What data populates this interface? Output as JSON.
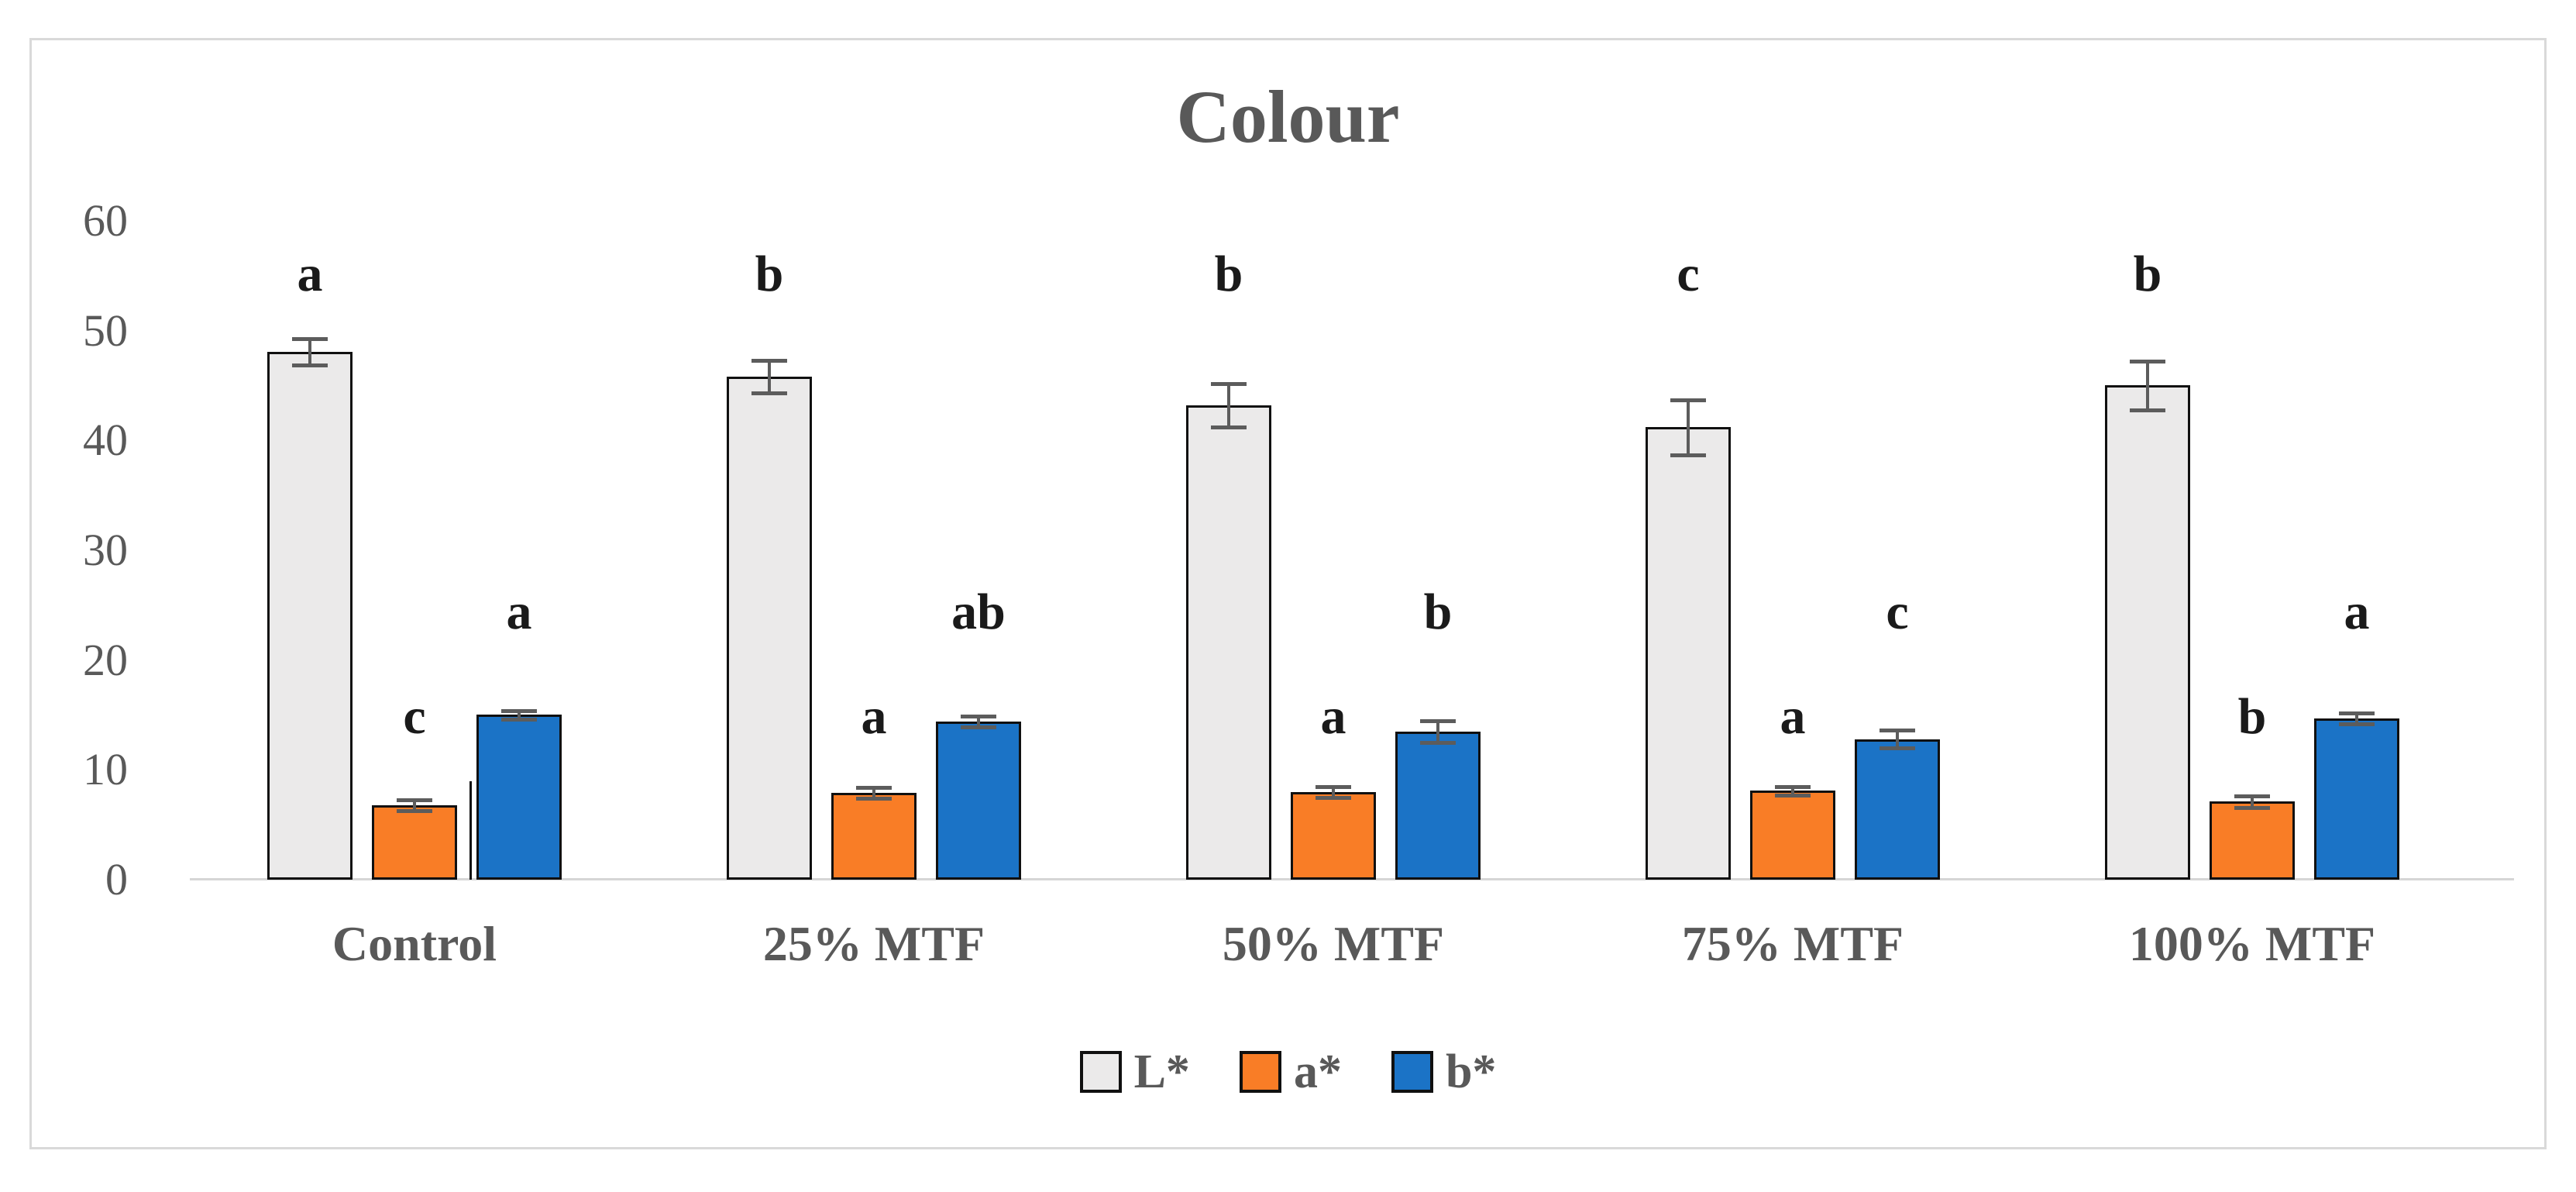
{
  "chart_data": {
    "type": "bar",
    "title": "Colour",
    "categories": [
      "Control",
      "25% MTF",
      "50% MTF",
      "75% MTF",
      "100% MTF"
    ],
    "series": [
      {
        "name": "L*",
        "color": "#ebeaea",
        "values": [
          48.1,
          45.8,
          43.2,
          41.2,
          45.0
        ],
        "errors": [
          1.2,
          1.5,
          2.0,
          2.5,
          2.2
        ],
        "sig_letters": [
          "a",
          "b",
          "b",
          "c",
          "b"
        ]
      },
      {
        "name": "a*",
        "color": "#f97d26",
        "values": [
          6.8,
          7.9,
          8.0,
          8.1,
          7.1
        ],
        "errors": [
          0.5,
          0.5,
          0.5,
          0.4,
          0.5
        ],
        "sig_letters": [
          "c",
          "a",
          "a",
          "a",
          "b"
        ]
      },
      {
        "name": "b*",
        "color": "#1b73c6",
        "values": [
          15.0,
          14.4,
          13.5,
          12.8,
          14.7
        ],
        "errors": [
          0.4,
          0.5,
          1.0,
          0.8,
          0.5
        ],
        "sig_letters": [
          "a",
          "ab",
          "b",
          "c",
          "a"
        ]
      }
    ],
    "ylim": [
      0,
      60
    ],
    "y_ticks": [
      0,
      10,
      20,
      30,
      40,
      50,
      60
    ],
    "xlabel": "",
    "ylabel": "",
    "grid": false,
    "error_bars": true,
    "legend_position": "bottom",
    "legend_labels": [
      "L*",
      "a*",
      "b*"
    ],
    "text_color": "#595959",
    "bar_border_color": "#101010",
    "error_bar_color": "#5c5c5c",
    "frame_color": "#d9d9d9"
  }
}
